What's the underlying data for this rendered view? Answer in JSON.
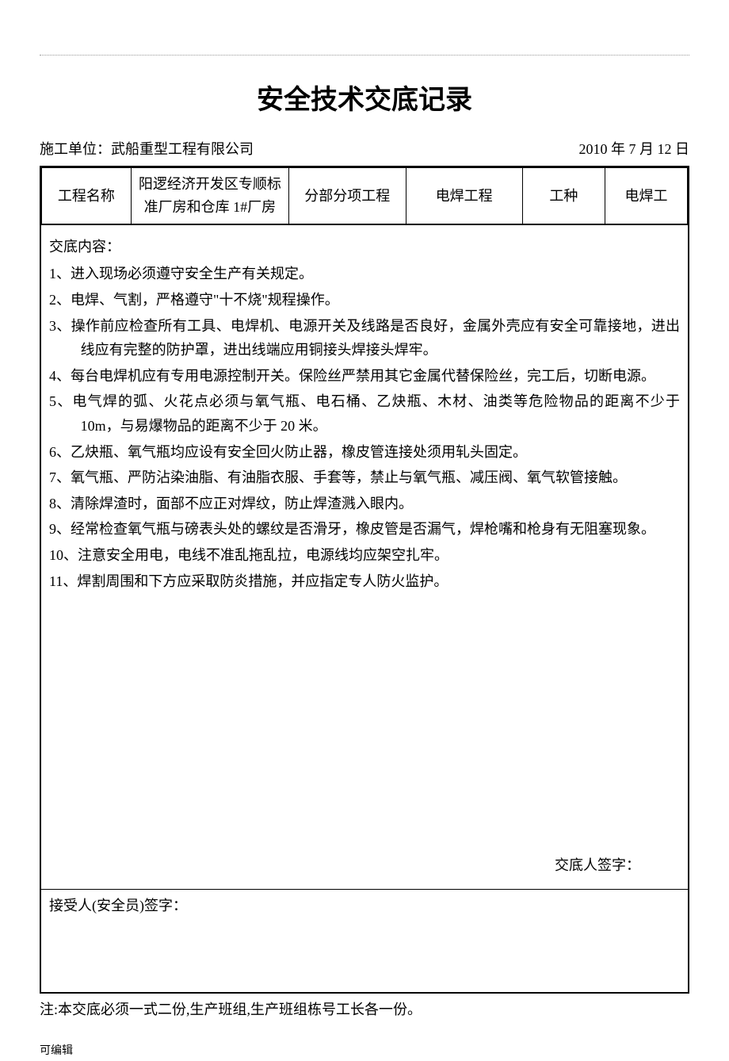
{
  "title": "安全技术交底记录",
  "meta": {
    "unit_label": "施工单位：",
    "unit_value": "武船重型工程有限公司",
    "date": "2010 年 7 月 12 日"
  },
  "info_row": {
    "c1_label": "工程名称",
    "c2_value": "阳逻经济开发区专顺标准厂房和仓库 1#厂房",
    "c3_label": "分部分项工程",
    "c4_value": "电焊工程",
    "c5_label": "工种",
    "c6_value": "电焊工"
  },
  "content": {
    "header": "交底内容：",
    "items": [
      "1、进入现场必须遵守安全生产有关规定。",
      "2、电焊、气割，严格遵守\"十不烧\"规程操作。",
      "3、操作前应检查所有工具、电焊机、电源开关及线路是否良好，金属外壳应有安全可靠接地，进出线应有完整的防护罩，进出线端应用铜接头焊接头焊牢。",
      "4、每台电焊机应有专用电源控制开关。保险丝严禁用其它金属代替保险丝，完工后，切断电源。",
      "5、电气焊的弧、火花点必须与氧气瓶、电石桶、乙炔瓶、木材、油类等危险物品的距离不少于 10m，与易爆物品的距离不少于 20 米。",
      "6、乙炔瓶、氧气瓶均应设有安全回火防止器，橡皮管连接处须用轧头固定。",
      "7、氧气瓶、严防沾染油脂、有油脂衣服、手套等，禁止与氧气瓶、减压阀、氧气软管接触。",
      "8、清除焊渣时，面部不应正对焊纹，防止焊渣溅入眼内。",
      "9、经常检查氧气瓶与磅表头处的螺纹是否滑牙，橡皮管是否漏气，焊枪嘴和枪身有无阻塞现象。",
      "10、注意安全用电，电线不准乱拖乱拉，电源线均应架空扎牢。",
      "11、焊割周围和下方应采取防炎措施，并应指定专人防火监护。"
    ]
  },
  "signatures": {
    "disclosure_label": "交底人签字：",
    "receiver_label": "接受人(安全员)签字："
  },
  "footnote": "注:本交底必须一式二份,生产班组,生产班组栋号工长各一份。",
  "editable_label": "可编辑"
}
